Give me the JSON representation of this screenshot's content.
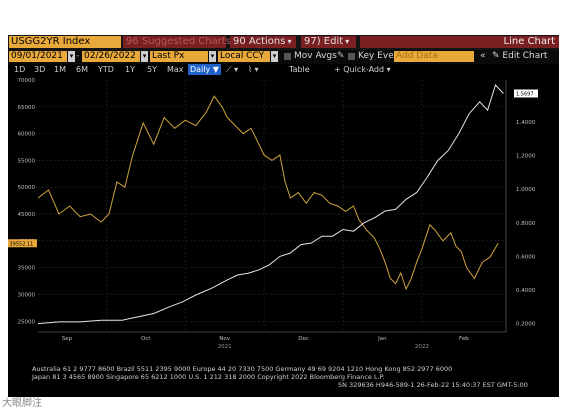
{
  "toolbar1": {
    "ticker": "USGG2YR Index",
    "suggested": "96 Suggested Charts",
    "actions": "90 Actions",
    "edit": "97) Edit",
    "title": "Line Chart"
  },
  "toolbar2": {
    "start_date": "09/01/2021",
    "end_date": "02/26/2022",
    "field": "Last Px",
    "currency": "Local CCY",
    "mov_avgs": "Mov Avgs",
    "key_events": "Key Events",
    "add_data_placeholder": "Add Data",
    "edit_chart": "Edit Chart"
  },
  "toolbar3": {
    "periods": [
      "1D",
      "3D",
      "1M",
      "6M",
      "YTD",
      "1Y",
      "5Y",
      "Max"
    ],
    "frequency": "Daily",
    "table": "Table",
    "quick_add": "+ Quick-Add"
  },
  "footer": {
    "line1": "Australia 61 2 9777 8600 Brazil 5511 2395 9000 Europe 44 20 7330 7500 Germany 49 69 9204 1210 Hong Kong 852 2977 6000",
    "line2": "Japan 81 3 4565 8900     Singapore 65 6212 1000     U.S. 1 212 318 2000          Copyright 2022 Bloomberg Finance L.P.",
    "line3": "SN 329636 H946-589-1 26-Feb-22 15:40:37 EST  GMT-5:00"
  },
  "watermark": "大眼脚注",
  "colors": {
    "accent_orange": "#e8a93a",
    "accent_red": "#7a1f22",
    "yellow_series": "#cda53a",
    "white_series": "#e6e6e6",
    "selected_blue": "#1f63c9"
  },
  "chart_data": {
    "type": "line",
    "left_axis": {
      "ticks": [
        25000,
        30000,
        35000,
        40000,
        45000,
        50000,
        55000,
        60000,
        65000,
        70000
      ],
      "ylim": [
        23000,
        70000
      ]
    },
    "right_axis": {
      "ticks": [
        0.2,
        0.4,
        0.6,
        0.8,
        1.0,
        1.2,
        1.4,
        1.6
      ],
      "tick_labels": [
        "0.2000",
        "0.4000",
        "0.6000",
        "0.8000",
        "1.0000",
        "1.2000",
        "1.4000"
      ],
      "ylim": [
        0.15,
        1.65
      ]
    },
    "x_labels": [
      "Sep",
      "Oct",
      "Nov",
      "Dec",
      "Jan",
      "Feb"
    ],
    "x_year_labels": [
      "2021",
      "2022"
    ],
    "xlim": [
      0,
      178
    ],
    "series": [
      {
        "axis": "left",
        "last_label": "39552.11",
        "points": [
          [
            0,
            48000
          ],
          [
            4,
            49500
          ],
          [
            8,
            45000
          ],
          [
            12,
            46500
          ],
          [
            16,
            44500
          ],
          [
            20,
            45000
          ],
          [
            24,
            43500
          ],
          [
            27,
            45000
          ],
          [
            30,
            51000
          ],
          [
            33,
            50000
          ],
          [
            36,
            56000
          ],
          [
            40,
            62000
          ],
          [
            44,
            58000
          ],
          [
            48,
            63000
          ],
          [
            52,
            61000
          ],
          [
            56,
            62500
          ],
          [
            60,
            61500
          ],
          [
            64,
            64000
          ],
          [
            67,
            67000
          ],
          [
            70,
            65000
          ],
          [
            72,
            63000
          ],
          [
            75,
            61500
          ],
          [
            78,
            60000
          ],
          [
            81,
            61000
          ],
          [
            84,
            58000
          ],
          [
            86,
            56000
          ],
          [
            89,
            55000
          ],
          [
            92,
            56000
          ],
          [
            94,
            51000
          ],
          [
            96,
            48000
          ],
          [
            99,
            49000
          ],
          [
            102,
            47000
          ],
          [
            105,
            49000
          ],
          [
            108,
            48500
          ],
          [
            111,
            47000
          ],
          [
            114,
            46500
          ],
          [
            117,
            45500
          ],
          [
            120,
            46500
          ],
          [
            122,
            44000
          ],
          [
            125,
            42000
          ],
          [
            128,
            40500
          ],
          [
            130,
            38500
          ],
          [
            132,
            36000
          ],
          [
            134,
            33000
          ],
          [
            136,
            32000
          ],
          [
            138,
            34000
          ],
          [
            140,
            31000
          ],
          [
            142,
            33000
          ],
          [
            144,
            36000
          ],
          [
            146,
            38500
          ],
          [
            149,
            43000
          ],
          [
            151,
            42000
          ],
          [
            154,
            40000
          ],
          [
            157,
            41500
          ],
          [
            159,
            39000
          ],
          [
            161,
            38000
          ],
          [
            163,
            35000
          ],
          [
            166,
            33000
          ],
          [
            169,
            36000
          ],
          [
            172,
            37000
          ],
          [
            175,
            39552
          ]
        ]
      },
      {
        "axis": "right",
        "last_label": "1.5697",
        "points": [
          [
            0,
            0.2
          ],
          [
            8,
            0.21
          ],
          [
            16,
            0.21
          ],
          [
            24,
            0.22
          ],
          [
            32,
            0.22
          ],
          [
            38,
            0.24
          ],
          [
            44,
            0.26
          ],
          [
            50,
            0.3
          ],
          [
            55,
            0.33
          ],
          [
            60,
            0.37
          ],
          [
            66,
            0.41
          ],
          [
            72,
            0.46
          ],
          [
            76,
            0.49
          ],
          [
            80,
            0.5
          ],
          [
            84,
            0.52
          ],
          [
            88,
            0.55
          ],
          [
            92,
            0.6
          ],
          [
            96,
            0.62
          ],
          [
            100,
            0.67
          ],
          [
            104,
            0.68
          ],
          [
            108,
            0.72
          ],
          [
            112,
            0.72
          ],
          [
            116,
            0.76
          ],
          [
            120,
            0.75
          ],
          [
            124,
            0.8
          ],
          [
            128,
            0.83
          ],
          [
            132,
            0.87
          ],
          [
            136,
            0.88
          ],
          [
            140,
            0.94
          ],
          [
            144,
            0.98
          ],
          [
            148,
            1.07
          ],
          [
            152,
            1.17
          ],
          [
            156,
            1.23
          ],
          [
            160,
            1.33
          ],
          [
            164,
            1.45
          ],
          [
            168,
            1.52
          ],
          [
            171,
            1.47
          ],
          [
            174,
            1.62
          ],
          [
            177,
            1.5697
          ]
        ]
      }
    ]
  }
}
